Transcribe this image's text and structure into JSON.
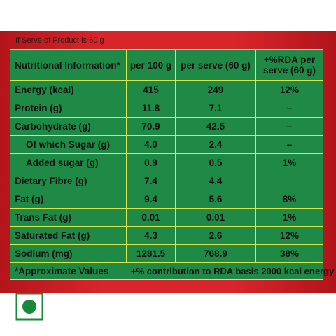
{
  "note": "If Serve of Product is 60 g",
  "table": {
    "header": [
      "Nutritional Information*",
      "per 100 g",
      "per serve (60 g)",
      "+%RDA per\nserve (60 g)"
    ],
    "rows": [
      [
        "Energy (kcal)",
        "415",
        "249",
        "12%"
      ],
      [
        "Protein (g)",
        "11.8",
        "7.1",
        "–"
      ],
      [
        "Carbohydrate (g)",
        "70.9",
        "42.5",
        "–"
      ],
      [
        "Of which Sugar (g)",
        "4.0",
        "2.4",
        "–"
      ],
      [
        "Added sugar (g)",
        "0.9",
        "0.5",
        "1%"
      ],
      [
        "Dietary Fibre (g)",
        "7.4",
        "4.4",
        null
      ],
      [
        "Fat (g)",
        "9.4",
        "5.6",
        "8%"
      ],
      [
        "Trans  Fat (g)",
        "0.01",
        "0.01",
        "1%"
      ],
      [
        "Saturated Fat (g)",
        "4.3",
        "2.6",
        "12%"
      ],
      [
        "Sodium (mg)",
        "1281.5",
        "768.9",
        "38%"
      ]
    ],
    "footer": [
      "*Approximate Values",
      "+% contribution to RDA basis 2000 kcal energy"
    ]
  }
}
